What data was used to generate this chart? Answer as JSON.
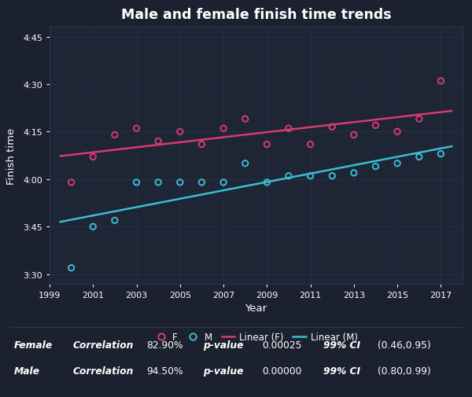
{
  "title": "Male and female finish time trends",
  "xlabel": "Year",
  "ylabel": "Finish time",
  "bg_color": "#1c2130",
  "plot_bg_color": "#1e2535",
  "text_color": "#ffffff",
  "grid_color": "#2e3650",
  "female_color": "#d63c6e",
  "male_color": "#3bbdd4",
  "female_data": [
    [
      2000,
      3.983
    ],
    [
      2001,
      4.117
    ],
    [
      2002,
      4.233
    ],
    [
      2003,
      4.267
    ],
    [
      2004,
      4.2
    ],
    [
      2005,
      4.25
    ],
    [
      2006,
      4.183
    ],
    [
      2007,
      4.267
    ],
    [
      2008,
      4.317
    ],
    [
      2009,
      4.183
    ],
    [
      2010,
      4.267
    ],
    [
      2011,
      4.183
    ],
    [
      2012,
      4.275
    ],
    [
      2013,
      4.233
    ],
    [
      2014,
      4.283
    ],
    [
      2015,
      4.25
    ],
    [
      2016,
      4.317
    ],
    [
      2017,
      4.517
    ]
  ],
  "male_data": [
    [
      2000,
      3.533
    ],
    [
      2001,
      3.75
    ],
    [
      2002,
      3.783
    ],
    [
      2003,
      3.983
    ],
    [
      2004,
      3.983
    ],
    [
      2005,
      3.983
    ],
    [
      2006,
      3.983
    ],
    [
      2007,
      3.983
    ],
    [
      2008,
      4.083
    ],
    [
      2009,
      3.983
    ],
    [
      2010,
      4.017
    ],
    [
      2011,
      4.017
    ],
    [
      2012,
      4.017
    ],
    [
      2013,
      4.033
    ],
    [
      2014,
      4.067
    ],
    [
      2015,
      4.083
    ],
    [
      2016,
      4.117
    ],
    [
      2017,
      4.133
    ]
  ],
  "ylim": [
    3.45,
    4.8
  ],
  "xlim": [
    1999,
    2018
  ],
  "ytick_vals": [
    3.5,
    3.75,
    4.0,
    4.25,
    4.5,
    4.75
  ],
  "xticks": [
    1999,
    2001,
    2003,
    2005,
    2007,
    2009,
    2011,
    2013,
    2015,
    2017
  ],
  "stats_female": {
    "label": "Female",
    "corr": "82.90%",
    "pval": "0.00025",
    "ci": "(0.46,0.95)"
  },
  "stats_male": {
    "label": "Male",
    "corr": "94.50%",
    "pval": "0.00000",
    "ci": "(0.80,0.99)"
  }
}
